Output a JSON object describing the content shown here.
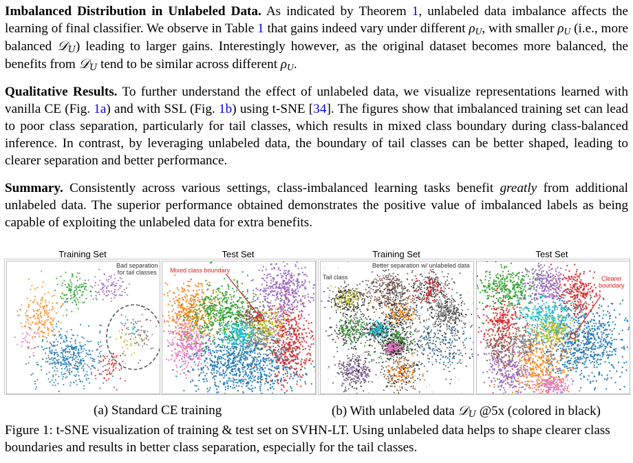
{
  "paragraphs": {
    "p1": {
      "heading": "Imbalanced Distribution in Unlabeled Data.",
      "t1": " As indicated by Theorem ",
      "ref_theorem": "1",
      "t2": ", unlabeled data imbalance affects the learning of final classifier. We observe in Table ",
      "ref_table": "1",
      "t3": " that gains indeed vary under different ",
      "rho": "ρ",
      "U": "U",
      "t4": ", with smaller ",
      "t5": " (i.e., more balanced ",
      "D": "𝒟",
      "t6": ") leading to larger gains. Interestingly however, as the original dataset becomes more balanced, the benefits from ",
      "t7": " tend to be similar across different ",
      "t8": "."
    },
    "p2": {
      "heading": "Qualitative Results.",
      "t1": " To further understand the effect of unlabeled data, we visualize representations learned with vanilla CE (Fig. ",
      "ref_1a": "1a",
      "t2": ") and with SSL (Fig. ",
      "ref_1b": "1b",
      "t3": ") using t-SNE [",
      "ref_34": "34",
      "t4": "]. The figures show that imbalanced training set can lead to poor class separation, particularly for tail classes, which results in mixed class boundary during class-balanced inference. In contrast, by leveraging unlabeled data, the boundary of tail classes can be better shaped, leading to clearer separation and better performance."
    },
    "p3": {
      "heading": "Summary.",
      "t1": " Consistently across various settings, class-imbalanced learning tasks benefit ",
      "emph": "greatly",
      "t2": " from additional unlabeled data. The superior performance obtained demonstrates the positive value of imbalanced labels as being capable of exploiting the unlabeled data for extra benefits."
    }
  },
  "figure": {
    "panels": [
      {
        "title": "Training Set"
      },
      {
        "title": "Test Set"
      },
      {
        "title": "Training Set"
      },
      {
        "title": "Test Set"
      }
    ],
    "annotations": {
      "bad_separation": "Bad separation",
      "for_tail": "for tail classes",
      "mixed_boundary": "Mixed class boundary",
      "better_separation": "Better separation w/ unlabeled data",
      "tail_class": "Tail class",
      "clearer": "Clearer",
      "boundary": "boundary"
    },
    "subcaption_a": "(a) Standard CE training",
    "subcaption_b_pre": "(b) With unlabeled data ",
    "subcaption_b_post": " @5x (colored in black)",
    "caption_label": "Figure 1:",
    "caption_text": " t-SNE visualization of training & test set on SVHN-LT. Using unlabeled data helps to shape clearer class boundaries and results in better class separation, especially for the tail classes."
  },
  "colors": {
    "link": "#0000ee",
    "annotation_red": "#d31f1f",
    "clusters": [
      "#1f77b4",
      "#ff7f0e",
      "#2ca02c",
      "#d62728",
      "#9467bd",
      "#8c564b",
      "#e377c2",
      "#7f7f7f",
      "#bcbd22",
      "#17becf"
    ]
  }
}
